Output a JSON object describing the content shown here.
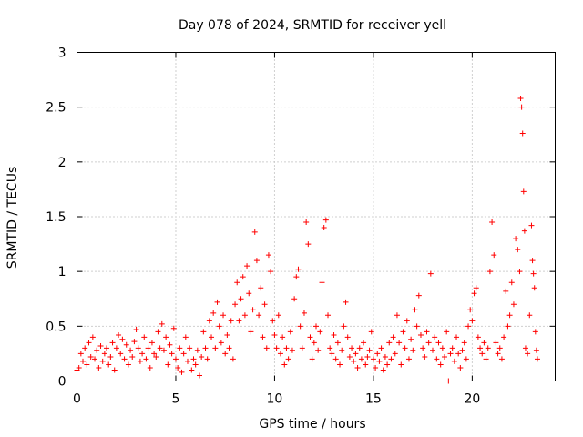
{
  "chart_data": {
    "type": "scatter",
    "title": "Day 078 of 2024, SRMTID for receiver yell",
    "xlabel": "GPS time / hours",
    "ylabel": "SRMTID / TECUs",
    "xlim": [
      0,
      24.2
    ],
    "ylim": [
      0,
      3
    ],
    "xticks": [
      0,
      5,
      10,
      15,
      20
    ],
    "xtick_labels": [
      "0",
      "5",
      "10",
      "15",
      "20"
    ],
    "yticks": [
      0,
      0.5,
      1,
      1.5,
      2,
      2.5,
      3
    ],
    "ytick_labels": [
      "0",
      "0.5",
      "1",
      "1.5",
      "2",
      "2.5",
      "3"
    ],
    "grid": true,
    "marker": "+",
    "color": "#ff0000",
    "series": [
      {
        "name": "SRMTID",
        "points": [
          [
            0.0,
            0.1
          ],
          [
            0.1,
            0.12
          ],
          [
            0.2,
            0.25
          ],
          [
            0.3,
            0.18
          ],
          [
            0.4,
            0.3
          ],
          [
            0.5,
            0.15
          ],
          [
            0.6,
            0.35
          ],
          [
            0.7,
            0.22
          ],
          [
            0.8,
            0.4
          ],
          [
            0.9,
            0.2
          ],
          [
            1.0,
            0.28
          ],
          [
            1.1,
            0.12
          ],
          [
            1.2,
            0.32
          ],
          [
            1.3,
            0.18
          ],
          [
            1.4,
            0.25
          ],
          [
            1.5,
            0.3
          ],
          [
            1.6,
            0.15
          ],
          [
            1.7,
            0.22
          ],
          [
            1.8,
            0.35
          ],
          [
            1.9,
            0.1
          ],
          [
            2.0,
            0.3
          ],
          [
            2.1,
            0.42
          ],
          [
            2.2,
            0.25
          ],
          [
            2.3,
            0.38
          ],
          [
            2.4,
            0.2
          ],
          [
            2.5,
            0.33
          ],
          [
            2.6,
            0.15
          ],
          [
            2.7,
            0.28
          ],
          [
            2.8,
            0.22
          ],
          [
            2.9,
            0.36
          ],
          [
            3.0,
            0.47
          ],
          [
            3.1,
            0.3
          ],
          [
            3.2,
            0.18
          ],
          [
            3.3,
            0.25
          ],
          [
            3.4,
            0.4
          ],
          [
            3.5,
            0.2
          ],
          [
            3.6,
            0.3
          ],
          [
            3.7,
            0.12
          ],
          [
            3.8,
            0.35
          ],
          [
            3.9,
            0.25
          ],
          [
            4.0,
            0.22
          ],
          [
            4.1,
            0.45
          ],
          [
            4.2,
            0.3
          ],
          [
            4.3,
            0.52
          ],
          [
            4.4,
            0.28
          ],
          [
            4.5,
            0.4
          ],
          [
            4.6,
            0.15
          ],
          [
            4.7,
            0.33
          ],
          [
            4.8,
            0.25
          ],
          [
            4.9,
            0.48
          ],
          [
            5.0,
            0.2
          ],
          [
            5.1,
            0.12
          ],
          [
            5.2,
            0.3
          ],
          [
            5.3,
            0.08
          ],
          [
            5.4,
            0.25
          ],
          [
            5.5,
            0.4
          ],
          [
            5.6,
            0.18
          ],
          [
            5.7,
            0.3
          ],
          [
            5.8,
            0.1
          ],
          [
            5.9,
            0.2
          ],
          [
            6.0,
            0.15
          ],
          [
            6.1,
            0.28
          ],
          [
            6.2,
            0.05
          ],
          [
            6.3,
            0.22
          ],
          [
            6.4,
            0.45
          ],
          [
            6.5,
            0.3
          ],
          [
            6.6,
            0.2
          ],
          [
            6.7,
            0.55
          ],
          [
            6.8,
            0.4
          ],
          [
            6.9,
            0.62
          ],
          [
            7.0,
            0.3
          ],
          [
            7.1,
            0.72
          ],
          [
            7.2,
            0.5
          ],
          [
            7.3,
            0.35
          ],
          [
            7.4,
            0.6
          ],
          [
            7.5,
            0.25
          ],
          [
            7.6,
            0.42
          ],
          [
            7.7,
            0.3
          ],
          [
            7.8,
            0.55
          ],
          [
            7.9,
            0.2
          ],
          [
            8.0,
            0.7
          ],
          [
            8.1,
            0.9
          ],
          [
            8.2,
            0.55
          ],
          [
            8.3,
            0.75
          ],
          [
            8.4,
            0.95
          ],
          [
            8.5,
            0.6
          ],
          [
            8.6,
            1.05
          ],
          [
            8.7,
            0.8
          ],
          [
            8.8,
            0.45
          ],
          [
            8.9,
            0.65
          ],
          [
            9.0,
            1.36
          ],
          [
            9.1,
            1.1
          ],
          [
            9.2,
            0.6
          ],
          [
            9.3,
            0.85
          ],
          [
            9.4,
            0.4
          ],
          [
            9.5,
            0.7
          ],
          [
            9.6,
            0.3
          ],
          [
            9.7,
            1.15
          ],
          [
            9.8,
            1.0
          ],
          [
            9.9,
            0.55
          ],
          [
            10.0,
            0.42
          ],
          [
            10.1,
            0.3
          ],
          [
            10.2,
            0.6
          ],
          [
            10.3,
            0.25
          ],
          [
            10.4,
            0.4
          ],
          [
            10.5,
            0.15
          ],
          [
            10.6,
            0.3
          ],
          [
            10.7,
            0.2
          ],
          [
            10.8,
            0.45
          ],
          [
            10.9,
            0.28
          ],
          [
            11.0,
            0.75
          ],
          [
            11.1,
            0.95
          ],
          [
            11.2,
            1.02
          ],
          [
            11.3,
            0.5
          ],
          [
            11.4,
            0.3
          ],
          [
            11.5,
            0.62
          ],
          [
            11.6,
            1.45
          ],
          [
            11.7,
            1.25
          ],
          [
            11.8,
            0.4
          ],
          [
            11.9,
            0.2
          ],
          [
            12.0,
            0.35
          ],
          [
            12.1,
            0.5
          ],
          [
            12.2,
            0.28
          ],
          [
            12.3,
            0.45
          ],
          [
            12.4,
            0.9
          ],
          [
            12.5,
            1.4
          ],
          [
            12.6,
            1.47
          ],
          [
            12.7,
            0.6
          ],
          [
            12.8,
            0.3
          ],
          [
            12.9,
            0.25
          ],
          [
            13.0,
            0.42
          ],
          [
            13.1,
            0.2
          ],
          [
            13.2,
            0.35
          ],
          [
            13.3,
            0.15
          ],
          [
            13.4,
            0.28
          ],
          [
            13.5,
            0.5
          ],
          [
            13.6,
            0.72
          ],
          [
            13.7,
            0.4
          ],
          [
            13.8,
            0.22
          ],
          [
            13.9,
            0.3
          ],
          [
            14.0,
            0.18
          ],
          [
            14.1,
            0.25
          ],
          [
            14.2,
            0.12
          ],
          [
            14.3,
            0.3
          ],
          [
            14.4,
            0.2
          ],
          [
            14.5,
            0.35
          ],
          [
            14.6,
            0.15
          ],
          [
            14.7,
            0.22
          ],
          [
            14.8,
            0.28
          ],
          [
            14.9,
            0.45
          ],
          [
            15.0,
            0.2
          ],
          [
            15.1,
            0.12
          ],
          [
            15.2,
            0.25
          ],
          [
            15.3,
            0.18
          ],
          [
            15.4,
            0.3
          ],
          [
            15.5,
            0.1
          ],
          [
            15.6,
            0.22
          ],
          [
            15.7,
            0.15
          ],
          [
            15.8,
            0.35
          ],
          [
            15.9,
            0.2
          ],
          [
            16.0,
            0.4
          ],
          [
            16.1,
            0.25
          ],
          [
            16.2,
            0.6
          ],
          [
            16.3,
            0.35
          ],
          [
            16.4,
            0.15
          ],
          [
            16.5,
            0.45
          ],
          [
            16.6,
            0.3
          ],
          [
            16.7,
            0.55
          ],
          [
            16.8,
            0.2
          ],
          [
            16.9,
            0.38
          ],
          [
            17.0,
            0.28
          ],
          [
            17.1,
            0.65
          ],
          [
            17.2,
            0.5
          ],
          [
            17.3,
            0.78
          ],
          [
            17.4,
            0.42
          ],
          [
            17.5,
            0.3
          ],
          [
            17.6,
            0.22
          ],
          [
            17.7,
            0.45
          ],
          [
            17.8,
            0.35
          ],
          [
            17.9,
            0.98
          ],
          [
            18.0,
            0.28
          ],
          [
            18.1,
            0.4
          ],
          [
            18.2,
            0.2
          ],
          [
            18.3,
            0.35
          ],
          [
            18.4,
            0.15
          ],
          [
            18.5,
            0.3
          ],
          [
            18.6,
            0.22
          ],
          [
            18.7,
            0.45
          ],
          [
            18.8,
            0.0
          ],
          [
            18.9,
            0.25
          ],
          [
            19.0,
            0.3
          ],
          [
            19.1,
            0.18
          ],
          [
            19.2,
            0.4
          ],
          [
            19.3,
            0.25
          ],
          [
            19.4,
            0.12
          ],
          [
            19.5,
            0.28
          ],
          [
            19.6,
            0.35
          ],
          [
            19.7,
            0.2
          ],
          [
            19.8,
            0.5
          ],
          [
            19.9,
            0.65
          ],
          [
            20.0,
            0.55
          ],
          [
            20.1,
            0.8
          ],
          [
            20.2,
            0.85
          ],
          [
            20.3,
            0.4
          ],
          [
            20.4,
            0.3
          ],
          [
            20.5,
            0.25
          ],
          [
            20.6,
            0.35
          ],
          [
            20.7,
            0.2
          ],
          [
            20.8,
            0.3
          ],
          [
            20.9,
            1.0
          ],
          [
            21.0,
            1.45
          ],
          [
            21.1,
            1.15
          ],
          [
            21.2,
            0.35
          ],
          [
            21.3,
            0.25
          ],
          [
            21.4,
            0.3
          ],
          [
            21.5,
            0.2
          ],
          [
            21.6,
            0.4
          ],
          [
            21.7,
            0.82
          ],
          [
            21.8,
            0.5
          ],
          [
            21.9,
            0.6
          ],
          [
            22.0,
            0.9
          ],
          [
            22.1,
            0.7
          ],
          [
            22.2,
            1.3
          ],
          [
            22.3,
            1.2
          ],
          [
            22.4,
            1.0
          ],
          [
            22.45,
            2.58
          ],
          [
            22.5,
            2.5
          ],
          [
            22.55,
            2.26
          ],
          [
            22.6,
            1.73
          ],
          [
            22.65,
            1.37
          ],
          [
            22.7,
            0.3
          ],
          [
            22.8,
            0.25
          ],
          [
            22.9,
            0.6
          ],
          [
            23.0,
            1.42
          ],
          [
            23.05,
            1.1
          ],
          [
            23.1,
            0.98
          ],
          [
            23.15,
            0.85
          ],
          [
            23.2,
            0.45
          ],
          [
            23.25,
            0.28
          ],
          [
            23.3,
            0.2
          ]
        ]
      }
    ]
  }
}
